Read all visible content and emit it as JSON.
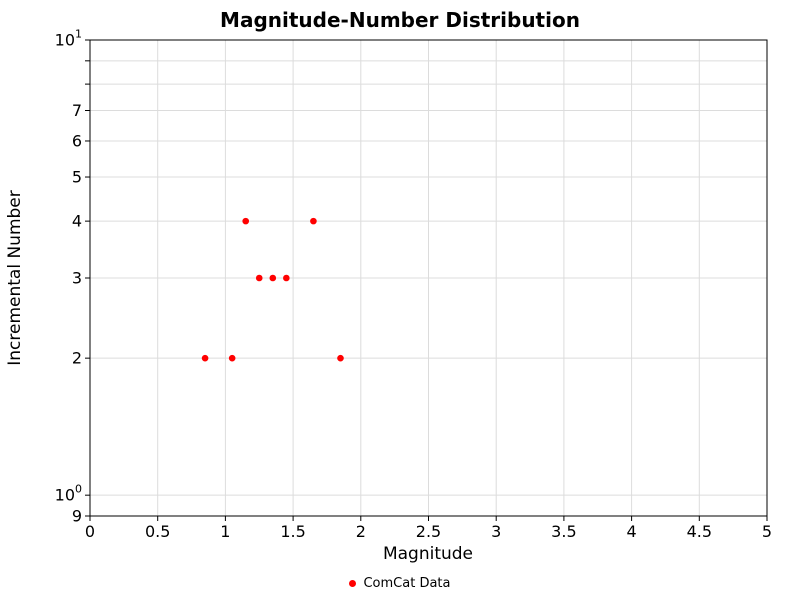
{
  "chart_data": {
    "type": "scatter",
    "title": "Magnitude-Number Distribution",
    "xlabel": "Magnitude",
    "ylabel": "Incremental Number",
    "xlim": [
      0,
      5
    ],
    "yscale": "log",
    "ylim": [
      0.9,
      10
    ],
    "grid": true,
    "x_ticks": {
      "values": [
        0,
        0.5,
        1,
        1.5,
        2,
        2.5,
        3,
        3.5,
        4,
        4.5,
        5
      ],
      "labels": [
        "0",
        "0.5",
        "1",
        "1.5",
        "2",
        "2.5",
        "3",
        "3.5",
        "4",
        "4.5",
        "5"
      ]
    },
    "y_ticks": {
      "values": [
        10,
        9,
        8,
        7,
        6,
        5,
        4,
        3,
        2,
        1,
        0.9
      ],
      "labels": [
        "10^1",
        "",
        "",
        "7",
        "6",
        "5",
        "4",
        "3",
        "2",
        "10^0",
        "9"
      ]
    },
    "legend": {
      "position": "bottom-center"
    },
    "series": [
      {
        "name": "ComCat Data",
        "color": "#ff0000",
        "marker": "circle",
        "points": [
          [
            0.85,
            2
          ],
          [
            1.05,
            2
          ],
          [
            1.15,
            4
          ],
          [
            1.25,
            3
          ],
          [
            1.35,
            3
          ],
          [
            1.45,
            3
          ],
          [
            1.65,
            4
          ],
          [
            1.85,
            2
          ]
        ]
      }
    ]
  }
}
